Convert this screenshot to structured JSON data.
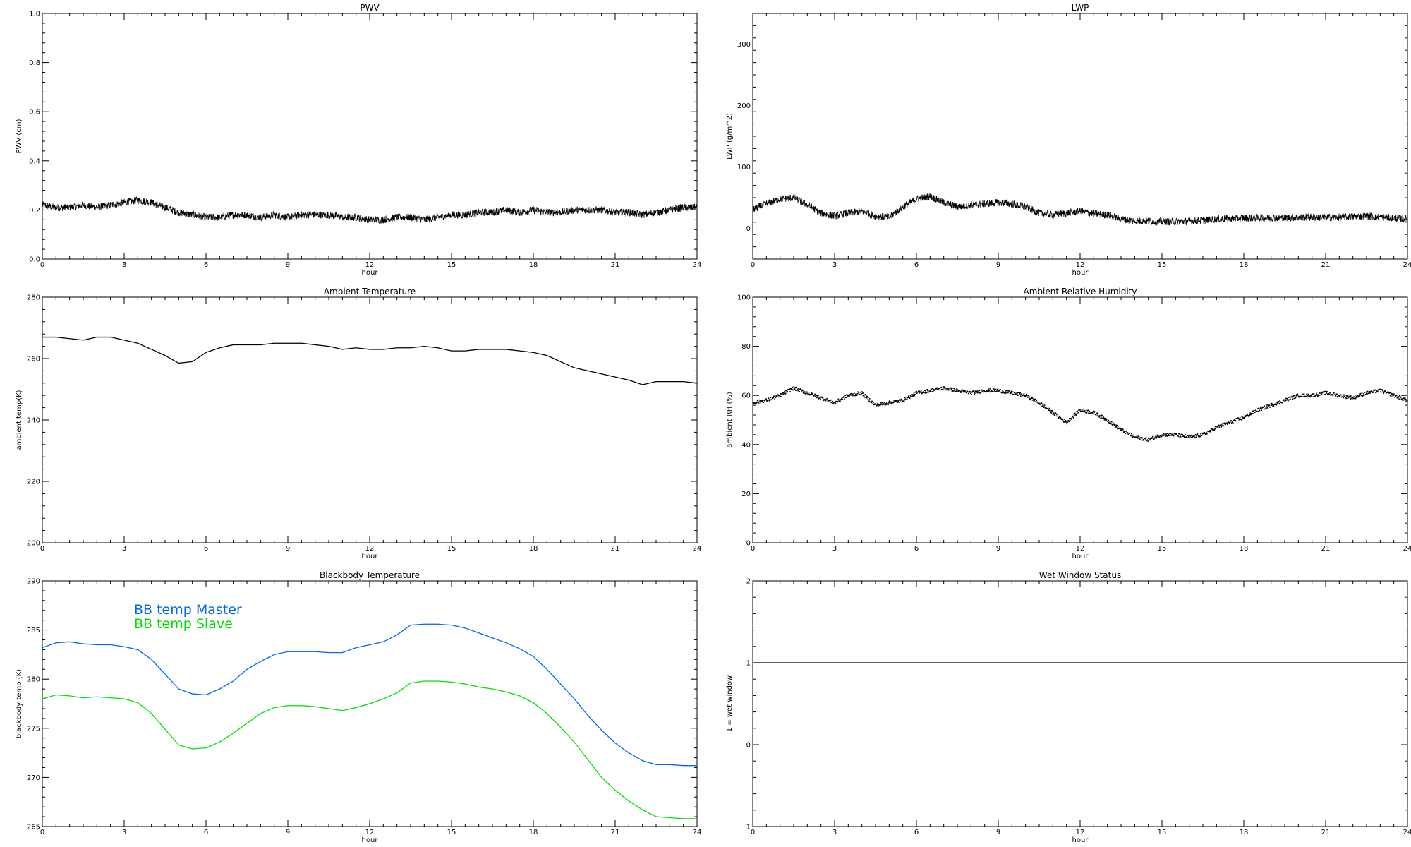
{
  "chart_data": [
    {
      "id": "pwv",
      "type": "line",
      "title": "PWV",
      "xlabel": "hour",
      "ylabel": "PWV (cm)",
      "xlim": [
        0,
        24
      ],
      "ylim": [
        0,
        1.0
      ],
      "xticks": [
        0,
        3,
        6,
        9,
        12,
        15,
        18,
        21,
        24
      ],
      "xtick_labels": [
        "0",
        "3",
        "6",
        "9",
        "12",
        "15",
        "18",
        "21",
        "24"
      ],
      "yticks": [
        0,
        0.2,
        0.4,
        0.6,
        0.8,
        1.0
      ],
      "ytick_labels": [
        "0.0",
        "0.2",
        "0.4",
        "0.6",
        "0.8",
        "1.0"
      ],
      "grid": false,
      "series": [
        {
          "color": "#000000",
          "noisy": true,
          "x": [
            0,
            0.5,
            1,
            1.5,
            2,
            2.5,
            3,
            3.5,
            4,
            4.5,
            5,
            5.5,
            6,
            6.5,
            7,
            7.5,
            8,
            8.5,
            9,
            9.5,
            10,
            10.5,
            11,
            11.5,
            12,
            12.5,
            13,
            13.5,
            14,
            14.5,
            15,
            15.5,
            16,
            16.5,
            17,
            17.5,
            18,
            18.5,
            19,
            19.5,
            20,
            20.5,
            21,
            21.5,
            22,
            22.5,
            23,
            23.5,
            24
          ],
          "y": [
            0.22,
            0.21,
            0.21,
            0.22,
            0.21,
            0.22,
            0.23,
            0.24,
            0.23,
            0.21,
            0.19,
            0.18,
            0.17,
            0.17,
            0.18,
            0.18,
            0.17,
            0.18,
            0.17,
            0.18,
            0.18,
            0.18,
            0.17,
            0.17,
            0.16,
            0.16,
            0.17,
            0.17,
            0.16,
            0.17,
            0.18,
            0.18,
            0.19,
            0.19,
            0.2,
            0.19,
            0.2,
            0.19,
            0.19,
            0.2,
            0.2,
            0.2,
            0.19,
            0.19,
            0.18,
            0.19,
            0.2,
            0.21,
            0.21
          ]
        }
      ]
    },
    {
      "id": "lwp",
      "type": "line",
      "title": "LWP",
      "xlabel": "hour",
      "ylabel": "LWP (g/m^2)",
      "xlim": [
        0,
        24
      ],
      "ylim": [
        -50,
        350
      ],
      "xticks": [
        0,
        3,
        6,
        9,
        12,
        15,
        18,
        21,
        24
      ],
      "xtick_labels": [
        "0",
        "3",
        "6",
        "9",
        "12",
        "15",
        "18",
        "21",
        "24"
      ],
      "yticks": [
        0,
        100,
        200,
        300
      ],
      "ytick_labels": [
        "0",
        "100",
        "200",
        "300"
      ],
      "grid": false,
      "series": [
        {
          "color": "#000000",
          "noisy": true,
          "x": [
            0,
            0.5,
            1,
            1.5,
            2,
            2.5,
            3,
            3.5,
            4,
            4.5,
            5,
            5.5,
            6,
            6.5,
            7,
            7.5,
            8,
            8.5,
            9,
            9.5,
            10,
            10.5,
            11,
            11.5,
            12,
            12.5,
            13,
            13.5,
            14,
            14.5,
            15,
            15.5,
            16,
            16.5,
            17,
            17.5,
            18,
            18.5,
            19,
            19.5,
            20,
            20.5,
            21,
            21.5,
            22,
            22.5,
            23,
            23.5,
            24
          ],
          "y": [
            30,
            40,
            48,
            50,
            38,
            25,
            20,
            25,
            28,
            20,
            18,
            35,
            48,
            52,
            42,
            35,
            38,
            40,
            42,
            40,
            35,
            25,
            22,
            25,
            28,
            24,
            22,
            15,
            12,
            12,
            11,
            11,
            12,
            13,
            15,
            16,
            17,
            17,
            17,
            17,
            18,
            18,
            18,
            18,
            19,
            20,
            18,
            17,
            15
          ]
        }
      ]
    },
    {
      "id": "ambient-temperature",
      "type": "line",
      "title": "Ambient Temperature",
      "xlabel": "hour",
      "ylabel": "ambient temp(K)",
      "xlim": [
        0,
        24
      ],
      "ylim": [
        200,
        280
      ],
      "xticks": [
        0,
        3,
        6,
        9,
        12,
        15,
        18,
        21,
        24
      ],
      "xtick_labels": [
        "0",
        "3",
        "6",
        "9",
        "12",
        "15",
        "18",
        "21",
        "24"
      ],
      "yticks": [
        200,
        220,
        240,
        260,
        280
      ],
      "ytick_labels": [
        "200",
        "220",
        "240",
        "260",
        "280"
      ],
      "grid": false,
      "series": [
        {
          "color": "#000000",
          "noisy": false,
          "x": [
            0,
            0.5,
            1,
            1.5,
            2,
            2.5,
            3,
            3.5,
            4,
            4.5,
            5,
            5.5,
            6,
            6.5,
            7,
            7.5,
            8,
            8.5,
            9,
            9.5,
            10,
            10.5,
            11,
            11.5,
            12,
            12.5,
            13,
            13.5,
            14,
            14.5,
            15,
            15.5,
            16,
            16.5,
            17,
            17.5,
            18,
            18.5,
            19,
            19.5,
            20,
            20.5,
            21,
            21.5,
            22,
            22.5,
            23,
            23.5,
            24
          ],
          "y": [
            267,
            267,
            266.5,
            266,
            267,
            267,
            266,
            265,
            263,
            261,
            258.5,
            259,
            262,
            263.5,
            264.5,
            264.5,
            264.5,
            265,
            265,
            265,
            264.5,
            264,
            263,
            263.5,
            263,
            263,
            263.5,
            263.5,
            264,
            263.5,
            262.5,
            262.5,
            263,
            263,
            263,
            262.5,
            262,
            261,
            259,
            257,
            256,
            255,
            254,
            253,
            251.5,
            252.5,
            252.5,
            252.5,
            252
          ]
        }
      ]
    },
    {
      "id": "ambient-relative-humidity",
      "type": "scatter",
      "title": "Ambient Relative Humidity",
      "xlabel": "hour",
      "ylabel": "ambient RH (%)",
      "xlim": [
        0,
        24
      ],
      "ylim": [
        0,
        100
      ],
      "xticks": [
        0,
        3,
        6,
        9,
        12,
        15,
        18,
        21,
        24
      ],
      "xtick_labels": [
        "0",
        "3",
        "6",
        "9",
        "12",
        "15",
        "18",
        "21",
        "24"
      ],
      "yticks": [
        0,
        20,
        40,
        60,
        80,
        100
      ],
      "ytick_labels": [
        "0",
        "20",
        "40",
        "60",
        "80",
        "100"
      ],
      "grid": false,
      "series": [
        {
          "color": "#000000",
          "noisy": false,
          "x": [
            0,
            0.5,
            1,
            1.5,
            2,
            2.5,
            3,
            3.5,
            4,
            4.5,
            5,
            5.5,
            6,
            6.5,
            7,
            7.5,
            8,
            8.5,
            9,
            9.5,
            10,
            10.5,
            11,
            11.5,
            12,
            12.5,
            13,
            13.5,
            14,
            14.5,
            15,
            15.5,
            16,
            16.5,
            17,
            17.5,
            18,
            18.5,
            19,
            19.5,
            20,
            20.5,
            21,
            21.5,
            22,
            22.5,
            23,
            23.5,
            24
          ],
          "y": [
            57,
            58,
            60,
            63,
            61,
            59,
            57,
            60,
            61,
            56,
            57,
            58,
            61,
            62,
            63,
            62,
            61,
            62,
            62,
            61,
            60,
            57,
            53,
            49,
            54,
            53,
            50,
            46,
            43,
            42,
            44,
            44,
            43,
            44,
            47,
            49,
            51,
            54,
            56,
            58,
            60,
            60,
            61,
            60,
            59,
            61,
            62,
            60,
            58
          ]
        }
      ]
    },
    {
      "id": "blackbody-temperature",
      "type": "line",
      "title": "Blackbody Temperature",
      "xlabel": "hour",
      "ylabel": "blackbody temp (K)",
      "xlim": [
        0,
        24
      ],
      "ylim": [
        265,
        290
      ],
      "xticks": [
        0,
        3,
        6,
        9,
        12,
        15,
        18,
        21,
        24
      ],
      "xtick_labels": [
        "0",
        "3",
        "6",
        "9",
        "12",
        "15",
        "18",
        "21",
        "24"
      ],
      "yticks": [
        265,
        270,
        275,
        280,
        285,
        290
      ],
      "ytick_labels": [
        "265",
        "270",
        "275",
        "280",
        "285",
        "290"
      ],
      "grid": false,
      "legend_position": "top-left",
      "series": [
        {
          "name": "BB temp Master",
          "color": "#0066ff",
          "noisy": false,
          "x": [
            0,
            0.5,
            1,
            1.5,
            2,
            2.5,
            3,
            3.5,
            4,
            4.5,
            5,
            5.5,
            6,
            6.5,
            7,
            7.5,
            8,
            8.5,
            9,
            9.5,
            10,
            10.5,
            11,
            11.5,
            12,
            12.5,
            13,
            13.5,
            14,
            14.5,
            15,
            15.5,
            16,
            16.5,
            17,
            17.5,
            18,
            18.5,
            19,
            19.5,
            20,
            20.5,
            21,
            21.5,
            22,
            22.5,
            23,
            23.5,
            24
          ],
          "y": [
            283.2,
            283.7,
            283.8,
            283.6,
            283.5,
            283.5,
            283.3,
            283,
            282,
            280.5,
            279,
            278.5,
            278.4,
            279,
            279.8,
            281,
            281.8,
            282.5,
            282.8,
            282.8,
            282.8,
            282.7,
            282.7,
            283.2,
            283.5,
            283.8,
            284.5,
            285.5,
            285.6,
            285.6,
            285.5,
            285.2,
            284.7,
            284.2,
            283.7,
            283.1,
            282.3,
            281,
            279.5,
            278,
            276.3,
            274.8,
            273.5,
            272.5,
            271.7,
            271.3,
            271.3,
            271.2,
            271.2
          ]
        },
        {
          "name": "BB temp Slave",
          "color": "#00e000",
          "noisy": false,
          "x": [
            0,
            0.5,
            1,
            1.5,
            2,
            2.5,
            3,
            3.5,
            4,
            4.5,
            5,
            5.5,
            6,
            6.5,
            7,
            7.5,
            8,
            8.5,
            9,
            9.5,
            10,
            10.5,
            11,
            11.5,
            12,
            12.5,
            13,
            13.5,
            14,
            14.5,
            15,
            15.5,
            16,
            16.5,
            17,
            17.5,
            18,
            18.5,
            19,
            19.5,
            20,
            20.5,
            21,
            21.5,
            22,
            22.5,
            23,
            23.5,
            24
          ],
          "y": [
            278,
            278.4,
            278.3,
            278.1,
            278.2,
            278.1,
            278,
            277.6,
            276.5,
            274.9,
            273.3,
            272.9,
            273,
            273.6,
            274.5,
            275.5,
            276.5,
            277.1,
            277.3,
            277.3,
            277.2,
            277,
            276.8,
            277.1,
            277.5,
            278,
            278.6,
            279.6,
            279.8,
            279.8,
            279.7,
            279.5,
            279.2,
            279,
            278.7,
            278.3,
            277.6,
            276.5,
            275.1,
            273.6,
            271.8,
            270,
            268.7,
            267.6,
            266.7,
            266,
            265.9,
            265.8,
            265.8
          ]
        }
      ]
    },
    {
      "id": "wet-window-status",
      "type": "line",
      "title": "Wet Window Status",
      "xlabel": "hour",
      "ylabel": "1 = wet window",
      "xlim": [
        0,
        24
      ],
      "ylim": [
        -1,
        2
      ],
      "xticks": [
        0,
        3,
        6,
        9,
        12,
        15,
        18,
        21,
        24
      ],
      "xtick_labels": [
        "0",
        "3",
        "6",
        "9",
        "12",
        "15",
        "18",
        "21",
        "24"
      ],
      "yticks": [
        -1,
        0,
        1,
        2
      ],
      "ytick_labels": [
        "-1",
        "0",
        "1",
        "2"
      ],
      "grid": false,
      "series": [
        {
          "color": "#000000",
          "noisy": false,
          "x": [
            0,
            24
          ],
          "y": [
            1,
            1
          ]
        }
      ]
    }
  ]
}
